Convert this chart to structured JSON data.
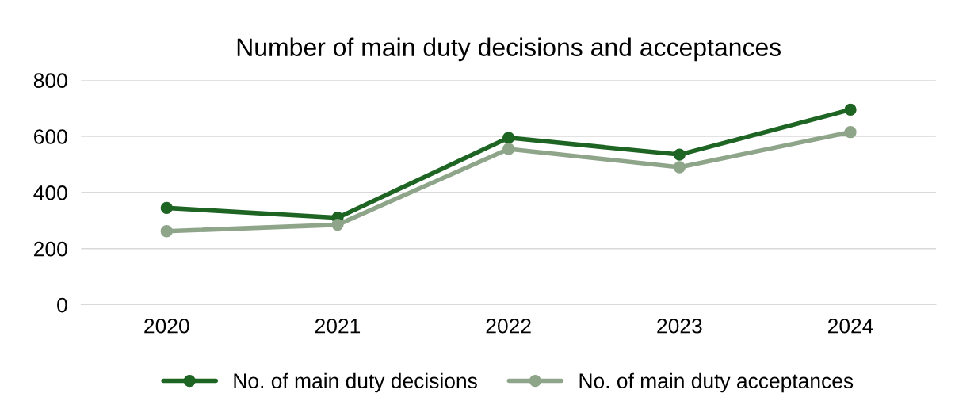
{
  "chart_data": {
    "type": "line",
    "title": "Number of main duty decisions and acceptances",
    "categories": [
      "2020",
      "2021",
      "2022",
      "2023",
      "2024"
    ],
    "series": [
      {
        "name": "No. of main duty decisions",
        "color": "#1e6423",
        "values": [
          345,
          310,
          595,
          535,
          695
        ]
      },
      {
        "name": "No. of main duty acceptances",
        "color": "#8ea58a",
        "values": [
          262,
          285,
          555,
          490,
          615
        ]
      }
    ],
    "ylim": [
      0,
      800
    ],
    "yticks": [
      0,
      200,
      400,
      600,
      800
    ],
    "grid": "y",
    "legend": "bottom",
    "marker": "circle",
    "line_style": "solid"
  }
}
